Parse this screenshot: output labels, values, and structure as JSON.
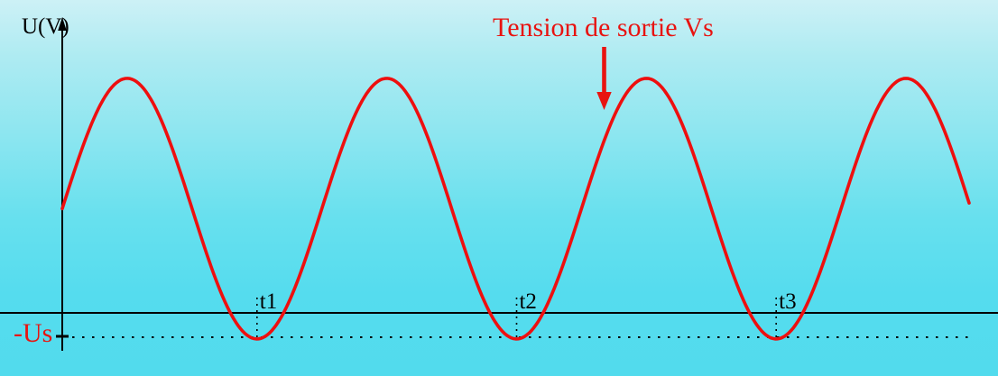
{
  "figure": {
    "background_top_color": "#cdf1f6",
    "background_bottom_color": "#52dbed",
    "accent_red": "#e81310",
    "axis_color": "#000000"
  },
  "chart_data": {
    "type": "line",
    "title": "Tension de sortie Vs",
    "xlabel": "",
    "ylabel": "U(V)",
    "x_tick_labels": [
      "t1",
      "t2",
      "t3"
    ],
    "y_tick_labels": [
      "-Us"
    ],
    "grid": false,
    "legend_position": "none",
    "series": [
      {
        "name": "Vs",
        "waveform": "sine",
        "color": "#ee0f0f",
        "periods_visible": 3.5,
        "phase_at_origin": "zero of mean, rising",
        "mean_offset_over_amplitude": 0.8,
        "amplitude_in_us_units": 4.75,
        "minimum_level": "-Us",
        "minima_at": [
          "t1",
          "t2",
          "t3"
        ]
      }
    ],
    "annotations": [
      {
        "text": "Tension de sortie Vs",
        "arrow_direction": "down",
        "points_to": "third positive half-wave of the sine curve"
      }
    ]
  }
}
